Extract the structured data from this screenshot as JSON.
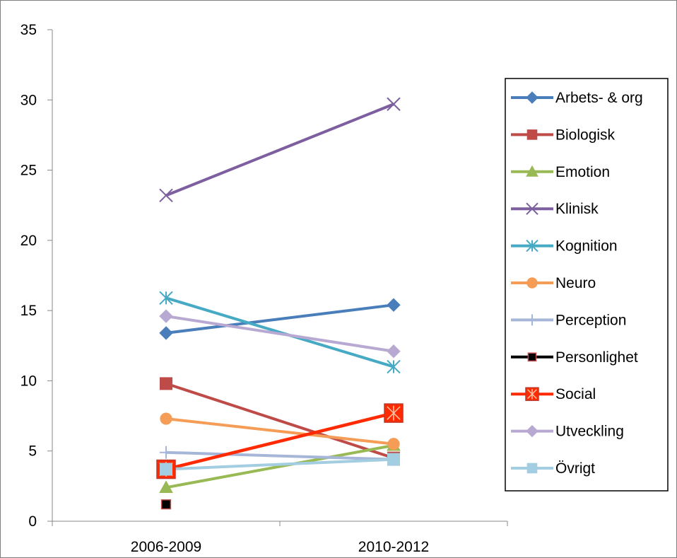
{
  "chart_data": {
    "type": "line",
    "categories": [
      "2006-2009",
      "2010-2012"
    ],
    "ylim": [
      0,
      35
    ],
    "yticks": [
      0,
      5,
      10,
      15,
      20,
      25,
      30,
      35
    ],
    "legend_position": "right",
    "grid": false,
    "series": [
      {
        "name": "Arbets- & org",
        "values": [
          13.4,
          15.4
        ],
        "color": "#4a7ebb",
        "marker": "diamond"
      },
      {
        "name": "Biologisk",
        "values": [
          9.8,
          4.5
        ],
        "color": "#be4b48",
        "marker": "square"
      },
      {
        "name": "Emotion",
        "values": [
          2.4,
          5.4
        ],
        "color": "#98b954",
        "marker": "triangle"
      },
      {
        "name": "Klinisk",
        "values": [
          23.2,
          29.7
        ],
        "color": "#7d5fa0",
        "marker": "x"
      },
      {
        "name": "Kognition",
        "values": [
          15.9,
          11.0
        ],
        "color": "#46aac4",
        "marker": "star"
      },
      {
        "name": "Neuro",
        "values": [
          7.3,
          5.5
        ],
        "color": "#f59d56",
        "marker": "circle"
      },
      {
        "name": "Perception",
        "values": [
          4.9,
          4.4
        ],
        "color": "#a5b6d8",
        "marker": "plus"
      },
      {
        "name": "Personlighet",
        "values": [
          1.2,
          null
        ],
        "color": "#000000",
        "marker": "square-black"
      },
      {
        "name": "Social",
        "values": [
          3.7,
          7.7
        ],
        "color": "#ff2a00",
        "marker": "square-star"
      },
      {
        "name": "Utveckling",
        "values": [
          14.6,
          12.1
        ],
        "color": "#b8a9d2",
        "marker": "diamond"
      },
      {
        "name": "Övrigt",
        "values": [
          3.7,
          4.4
        ],
        "color": "#a3cde0",
        "marker": "square"
      }
    ]
  }
}
